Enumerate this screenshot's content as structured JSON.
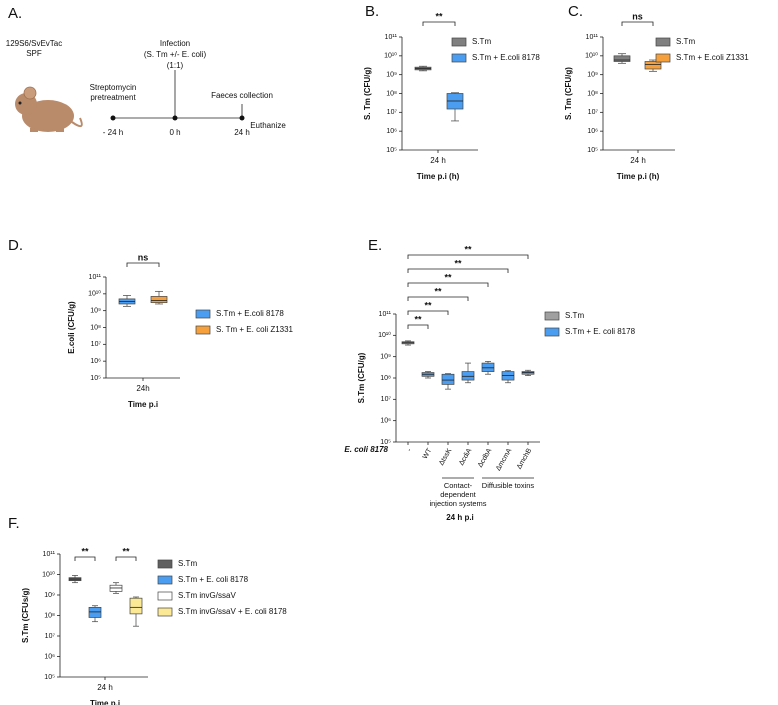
{
  "panel_a": {
    "letter": "A.",
    "mouse": [
      "129S6/SvEvTac",
      "SPF"
    ],
    "pretreatment": [
      "Streptomycin",
      "pretreatment"
    ],
    "infection": [
      "Infection",
      "(S. Tm +/- E. coli)",
      "(1:1)"
    ],
    "faeces": "Faeces collection",
    "euthanize": "Euthanize",
    "times": [
      "- 24 h",
      "0 h",
      "24 h"
    ]
  },
  "chart_data": [
    {
      "type": "box",
      "panel": "B.",
      "y_label": "S. Tm (CFU/g)",
      "x_label": "Time p.i (h)",
      "categories": [
        "24 h"
      ],
      "log_y": true,
      "ylim": [
        100000,
        100000000000
      ],
      "yticks": [
        {
          "value": 100000,
          "label": "10⁵"
        },
        {
          "value": 1000000,
          "label": "10⁶"
        },
        {
          "value": 10000000,
          "label": "10⁷"
        },
        {
          "value": 100000000,
          "label": "10⁸"
        },
        {
          "value": 1000000000,
          "label": "10⁹"
        },
        {
          "value": 10000000000,
          "label": "10¹⁰"
        },
        {
          "value": 100000000000,
          "label": "10¹¹"
        }
      ],
      "series": [
        {
          "name": "S.Tm",
          "color": "#808080",
          "values": [
            {
              "min": 1600000000,
              "q1": 1800000000,
              "median": 2100000000,
              "q3": 2500000000,
              "max": 2800000000
            }
          ]
        },
        {
          "name": "S.Tm + E.coli 8178",
          "color": "#4a9df0",
          "values": [
            {
              "min": 3500000,
              "q1": 15000000,
              "median": 40000000,
              "q3": 100000000,
              "max": 110000000
            }
          ]
        }
      ],
      "annotations": [
        "**"
      ]
    },
    {
      "type": "box",
      "panel": "C.",
      "y_label": "S. Tm (CFU/g)",
      "x_label": "Time p.i (h)",
      "categories": [
        "24 h"
      ],
      "log_y": true,
      "ylim": [
        100000,
        100000000000
      ],
      "yticks": [
        {
          "value": 100000,
          "label": "10⁵"
        },
        {
          "value": 1000000,
          "label": "10⁶"
        },
        {
          "value": 10000000,
          "label": "10⁷"
        },
        {
          "value": 100000000,
          "label": "10⁸"
        },
        {
          "value": 1000000000,
          "label": "10⁹"
        },
        {
          "value": 10000000000,
          "label": "10¹⁰"
        },
        {
          "value": 100000000000,
          "label": "10¹¹"
        }
      ],
      "series": [
        {
          "name": "S.Tm",
          "color": "#808080",
          "values": [
            {
              "min": 4000000000,
              "q1": 5000000000,
              "median": 6000000000,
              "q3": 10000000000,
              "max": 13000000000
            }
          ]
        },
        {
          "name": "S.Tm + E.coli Z1331",
          "color": "#f5a03c",
          "values": [
            {
              "min": 1500000000,
              "q1": 2000000000,
              "median": 3500000000,
              "q3": 5000000000,
              "max": 6000000000
            }
          ]
        }
      ],
      "annotations": [
        "ns"
      ]
    },
    {
      "type": "box",
      "panel": "D.",
      "y_label": "E.coli (CFU/g)",
      "x_label": "Time p.i",
      "categories": [
        "24h"
      ],
      "log_y": true,
      "ylim": [
        100000,
        100000000000
      ],
      "yticks": [
        {
          "value": 100000,
          "label": "10⁵"
        },
        {
          "value": 1000000,
          "label": "10⁶"
        },
        {
          "value": 10000000,
          "label": "10⁷"
        },
        {
          "value": 100000000,
          "label": "10⁸"
        },
        {
          "value": 1000000000,
          "label": "10⁹"
        },
        {
          "value": 10000000000,
          "label": "10¹⁰"
        },
        {
          "value": 100000000000,
          "label": "10¹¹"
        }
      ],
      "series": [
        {
          "name": "S.Tm + E.coli 8178",
          "color": "#4a9df0",
          "values": [
            {
              "min": 1800000000,
              "q1": 2500000000,
              "median": 3500000000,
              "q3": 5000000000,
              "max": 8000000000
            }
          ]
        },
        {
          "name": "S. Tm + E. coli Z1331",
          "color": "#f5a03c",
          "values": [
            {
              "min": 2500000000,
              "q1": 3000000000,
              "median": 4000000000,
              "q3": 7000000000,
              "max": 14000000000
            }
          ]
        }
      ],
      "annotations": [
        "ns"
      ]
    },
    {
      "type": "box",
      "panel": "E.",
      "y_label": "S.Tm (CFU/g)",
      "x_label": "24 h p.i",
      "row_label": "E. coli 8178",
      "categories": [
        "-",
        "WT",
        "ΔtssK",
        "ΔcdiA",
        "ΔcdbA",
        "ΔmcmA",
        "ΔmchB"
      ],
      "groups": [
        [
          "Contact-",
          "dependent",
          "injection systems"
        ],
        [
          "Diffusible toxins"
        ]
      ],
      "log_y": true,
      "ylim": [
        100000,
        100000000000
      ],
      "yticks": [
        {
          "value": 100000,
          "label": "10⁵"
        },
        {
          "value": 1000000,
          "label": "10⁶"
        },
        {
          "value": 10000000,
          "label": "10⁷"
        },
        {
          "value": 100000000,
          "label": "10⁸"
        },
        {
          "value": 1000000000,
          "label": "10⁹"
        },
        {
          "value": 10000000000,
          "label": "10¹⁰"
        },
        {
          "value": 100000000000,
          "label": "10¹¹"
        }
      ],
      "series": [
        {
          "name": "S.Tm",
          "color": "#a0a0a0",
          "values": [
            {
              "min": 3500000000,
              "q1": 4000000000,
              "median": 4500000000,
              "q3": 5000000000,
              "max": 5500000000
            },
            null,
            null,
            null,
            null,
            null,
            null
          ]
        },
        {
          "name": "S.Tm + E. coli 8178",
          "color": "#4a9df0",
          "values": [
            null,
            {
              "min": 100000000,
              "q1": 120000000,
              "median": 150000000,
              "q3": 180000000,
              "max": 200000000
            },
            {
              "min": 30000000,
              "q1": 50000000,
              "median": 80000000,
              "q3": 150000000,
              "max": 160000000
            },
            {
              "min": 60000000,
              "q1": 80000000,
              "median": 120000000,
              "q3": 200000000,
              "max": 500000000
            },
            {
              "min": 150000000,
              "q1": 200000000,
              "median": 300000000,
              "q3": 500000000,
              "max": 600000000
            },
            {
              "min": 60000000,
              "q1": 80000000,
              "median": 130000000,
              "q3": 200000000,
              "max": 220000000
            },
            {
              "min": 130000000,
              "q1": 150000000,
              "median": 180000000,
              "q3": 200000000,
              "max": 230000000
            }
          ]
        }
      ],
      "annotations": [
        "**",
        "**",
        "**",
        "**",
        "**",
        "**"
      ]
    },
    {
      "type": "box",
      "panel": "F.",
      "y_label": "S.Tm (CFUs/g)",
      "x_label": "Time p.i",
      "categories": [
        "24 h"
      ],
      "log_y": true,
      "ylim": [
        100000,
        100000000000
      ],
      "yticks": [
        {
          "value": 100000,
          "label": "10⁵"
        },
        {
          "value": 1000000,
          "label": "10⁶"
        },
        {
          "value": 10000000,
          "label": "10⁷"
        },
        {
          "value": 100000000,
          "label": "10⁸"
        },
        {
          "value": 1000000000,
          "label": "10⁹"
        },
        {
          "value": 10000000000,
          "label": "10¹⁰"
        },
        {
          "value": 100000000000,
          "label": "10¹¹"
        }
      ],
      "series": [
        {
          "name": "S.Tm",
          "color": "#606060",
          "values": [
            {
              "min": 4000000000,
              "q1": 5000000000,
              "median": 6000000000,
              "q3": 7000000000,
              "max": 9000000000
            }
          ]
        },
        {
          "name": "S.Tm + E. coli 8178",
          "color": "#4a9df0",
          "values": [
            {
              "min": 50000000,
              "q1": 80000000,
              "median": 150000000,
              "q3": 250000000,
              "max": 300000000
            }
          ]
        },
        {
          "name": "S.Tm invG/ssaV",
          "color": "#ffffff",
          "values": [
            {
              "min": 1200000000,
              "q1": 1500000000,
              "median": 2200000000,
              "q3": 3000000000,
              "max": 4000000000
            }
          ]
        },
        {
          "name": "S.Tm invG/ssaV + E. coli 8178",
          "color": "#fbe996",
          "values": [
            {
              "min": 30000000,
              "q1": 120000000,
              "median": 250000000,
              "q3": 700000000,
              "max": 800000000
            }
          ]
        }
      ],
      "annotations": [
        "**",
        "**"
      ]
    }
  ]
}
